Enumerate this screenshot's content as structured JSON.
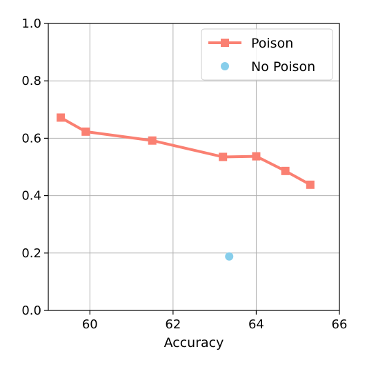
{
  "chart_data": {
    "type": "line",
    "title": "",
    "xlabel": "Accuracy",
    "ylabel": "",
    "xlim": [
      59,
      66
    ],
    "ylim": [
      0.0,
      1.0
    ],
    "xticks": [
      60,
      62,
      64,
      66
    ],
    "xtick_labels": [
      "60",
      "62",
      "64",
      "66"
    ],
    "yticks": [
      0.0,
      0.2,
      0.4,
      0.6,
      0.8,
      1.0
    ],
    "ytick_labels": [
      "0.0",
      "0.2",
      "0.4",
      "0.6",
      "0.8",
      "1.0"
    ],
    "grid": true,
    "legend_position": "top-right",
    "series": [
      {
        "name": "Poison",
        "kind": "line",
        "marker": "square",
        "color": "#fa8072",
        "points": [
          {
            "x": 59.3,
            "y": 0.672
          },
          {
            "x": 59.9,
            "y": 0.623
          },
          {
            "x": 61.5,
            "y": 0.592
          },
          {
            "x": 63.2,
            "y": 0.535
          },
          {
            "x": 64.0,
            "y": 0.537
          },
          {
            "x": 64.7,
            "y": 0.486
          },
          {
            "x": 65.3,
            "y": 0.438
          }
        ]
      },
      {
        "name": "No Poison",
        "kind": "scatter",
        "marker": "circle",
        "color": "#87ceeb",
        "points": [
          {
            "x": 63.35,
            "y": 0.188
          }
        ]
      }
    ]
  }
}
